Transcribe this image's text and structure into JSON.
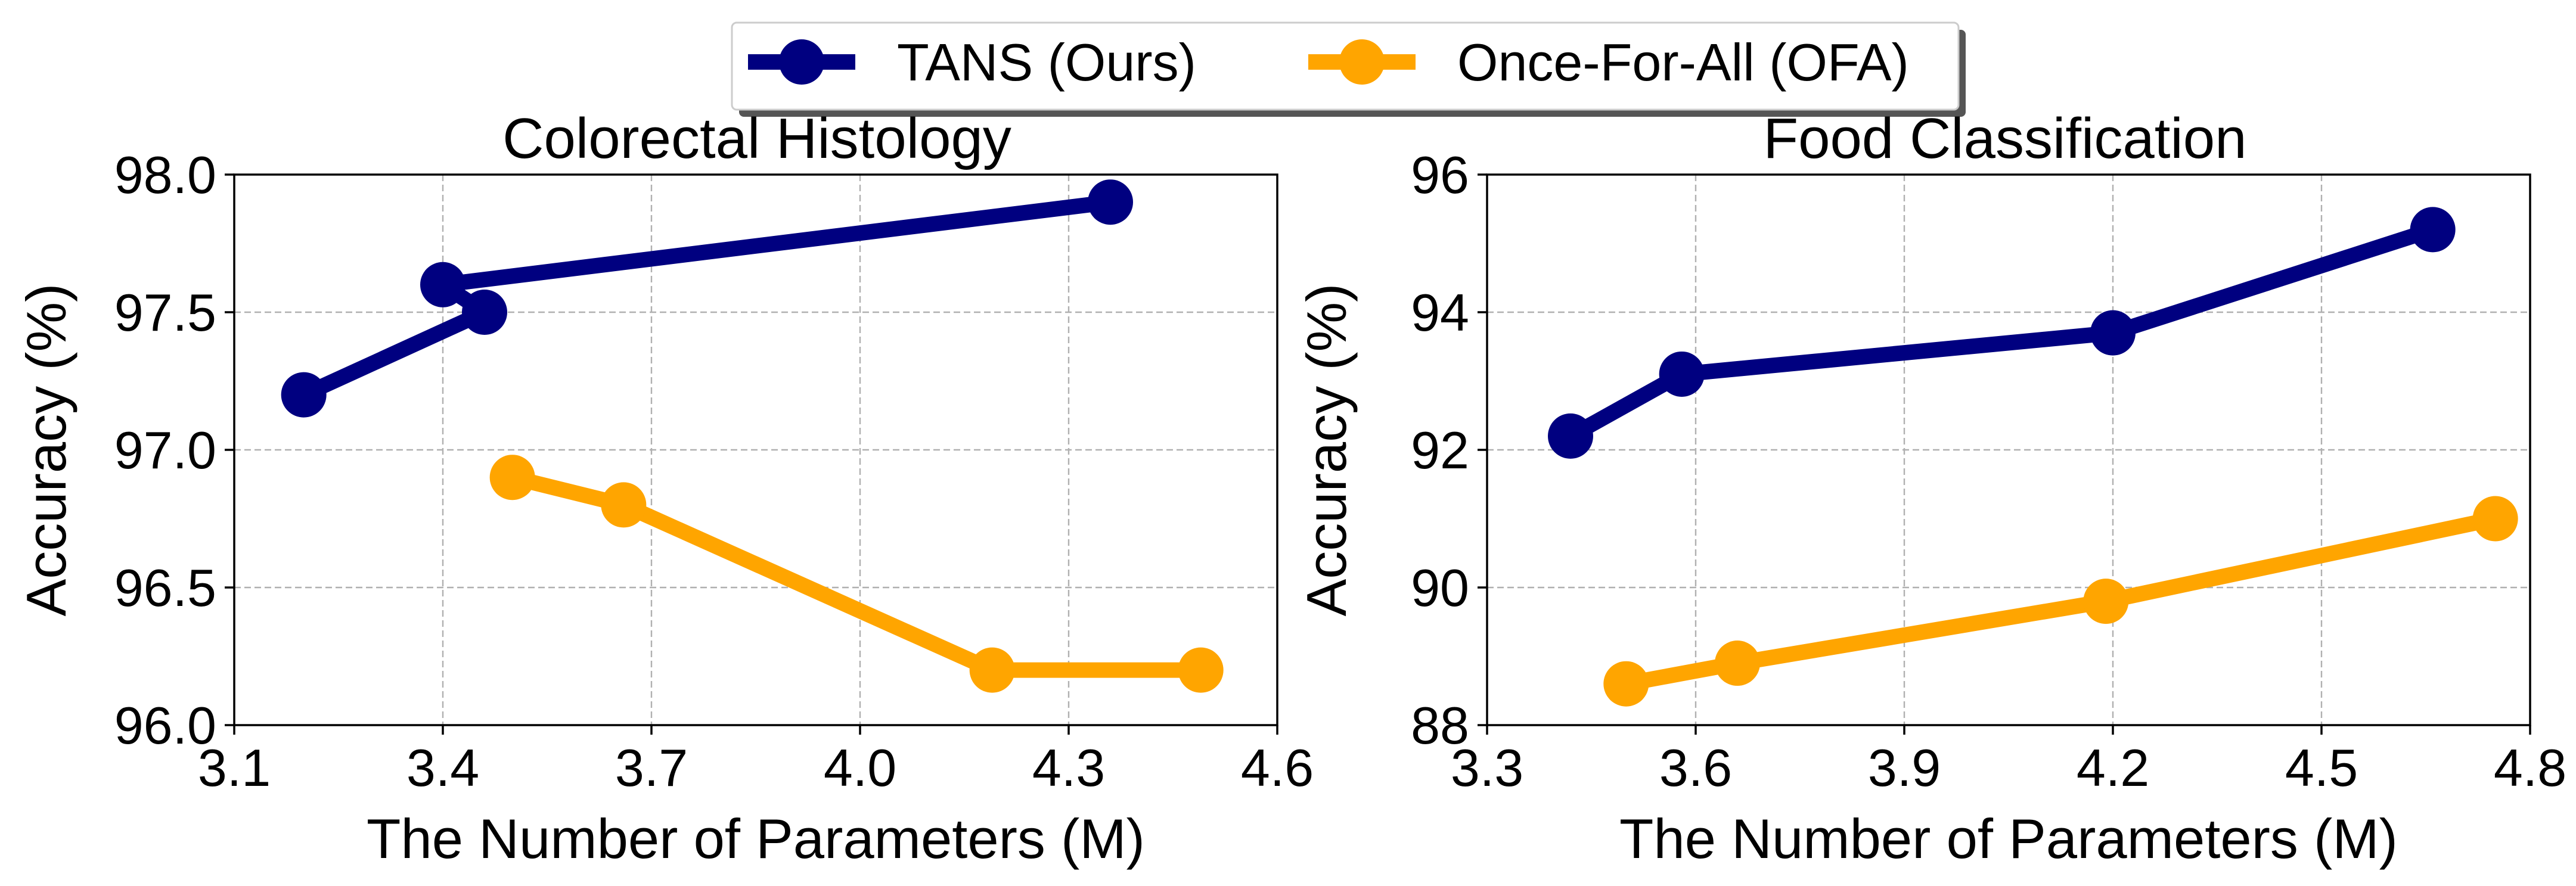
{
  "legend": {
    "entries": [
      {
        "label": "TANS (Ours)",
        "color": "#000080"
      },
      {
        "label": "Once-For-All (OFA)",
        "color": "#FFA500"
      }
    ],
    "placement": "top-center"
  },
  "chart_data": [
    {
      "type": "line",
      "title": "Colorectal Histology",
      "xlabel": "The Number of Parameters (M)",
      "ylabel": "Accuracy (%)",
      "xlim": [
        3.1,
        4.6
      ],
      "ylim": [
        96.0,
        98.0
      ],
      "xticks": [
        "3.1",
        "3.4",
        "3.7",
        "4.0",
        "4.3",
        "4.6"
      ],
      "yticks": [
        "96.0",
        "96.5",
        "97.0",
        "97.5",
        "98.0"
      ],
      "grid": true,
      "series": [
        {
          "name": "TANS (Ours)",
          "color": "#000080",
          "x": [
            3.2,
            3.46,
            3.4,
            4.36
          ],
          "y": [
            97.2,
            97.5,
            97.6,
            97.9
          ]
        },
        {
          "name": "Once-For-All (OFA)",
          "color": "#FFA500",
          "x": [
            3.5,
            3.66,
            4.19,
            4.49
          ],
          "y": [
            96.9,
            96.8,
            96.2,
            96.2
          ]
        }
      ]
    },
    {
      "type": "line",
      "title": "Food Classification",
      "xlabel": "The Number of Parameters (M)",
      "ylabel": "Accuracy (%)",
      "xlim": [
        3.3,
        4.8
      ],
      "ylim": [
        88,
        96
      ],
      "xticks": [
        "3.3",
        "3.6",
        "3.9",
        "4.2",
        "4.5",
        "4.8"
      ],
      "yticks": [
        "88",
        "90",
        "92",
        "94",
        "96"
      ],
      "grid": true,
      "series": [
        {
          "name": "TANS (Ours)",
          "color": "#000080",
          "x": [
            3.42,
            3.58,
            4.2,
            4.66
          ],
          "y": [
            92.2,
            93.1,
            93.7,
            95.2
          ]
        },
        {
          "name": "Once-For-All (OFA)",
          "color": "#FFA500",
          "x": [
            3.5,
            3.66,
            4.19,
            4.75
          ],
          "y": [
            88.6,
            88.9,
            89.8,
            91.0
          ]
        }
      ]
    }
  ]
}
